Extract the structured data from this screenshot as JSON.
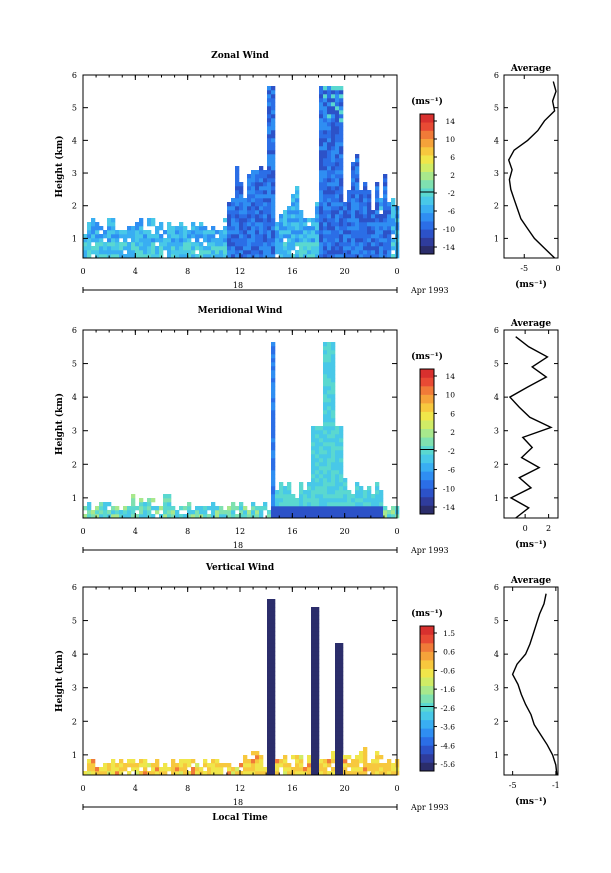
{
  "colors": {
    "colormap": [
      "#2b2d6b",
      "#2f3c9c",
      "#2c52c8",
      "#2b6ee6",
      "#2f8ef2",
      "#39aef2",
      "#48c8e8",
      "#5ad8d0",
      "#7fe1b0",
      "#a8e88c",
      "#d0ec66",
      "#f0e64a",
      "#f7c83e",
      "#f5a23a",
      "#f07a38",
      "#e84a34",
      "#d8302e"
    ],
    "line": "#000000"
  },
  "chart_data": [
    {
      "type": "heatmap",
      "title": "Zonal Wind",
      "ylabel": "Height (km)",
      "xlabel": "",
      "x_ticks": [
        "0",
        "4",
        "8",
        "12",
        "16",
        "20",
        "0"
      ],
      "y_ticks": [
        "1",
        "2",
        "3",
        "4",
        "5",
        "6"
      ],
      "xlim": [
        0,
        24
      ],
      "ylim": [
        0.4,
        6
      ],
      "date_label": "18",
      "date_suffix": "Apr 1993",
      "colorbar": {
        "unit": "(ms⁻¹)",
        "ticks": [
          "14",
          "10",
          "6",
          "2",
          "-2",
          "-6",
          "-10",
          "-14"
        ],
        "range": [
          -16,
          16
        ]
      },
      "profile": {
        "title": "Average",
        "xlabel": "(ms⁻¹)",
        "x_ticks": [
          "-5",
          "0"
        ],
        "x_tick_values": [
          -5,
          0
        ],
        "xlim": [
          -8,
          0
        ],
        "y_ticks": [
          "1",
          "2",
          "3",
          "4",
          "5",
          "6"
        ],
        "heights": [
          0.4,
          0.7,
          1.0,
          1.3,
          1.6,
          1.9,
          2.2,
          2.5,
          2.8,
          3.1,
          3.4,
          3.7,
          4.0,
          4.3,
          4.6,
          4.9,
          5.2,
          5.5,
          5.8
        ],
        "values": [
          -0.5,
          -2.0,
          -3.5,
          -4.5,
          -5.5,
          -6.0,
          -6.5,
          -7.0,
          -7.2,
          -6.8,
          -7.3,
          -6.5,
          -4.5,
          -3.0,
          -2.0,
          -0.5,
          -0.8,
          -0.3,
          -0.7
        ]
      }
    },
    {
      "type": "heatmap",
      "title": "Meridional Wind",
      "ylabel": "Height (km)",
      "xlabel": "",
      "x_ticks": [
        "0",
        "4",
        "8",
        "12",
        "16",
        "20",
        "0"
      ],
      "y_ticks": [
        "1",
        "2",
        "3",
        "4",
        "5",
        "6"
      ],
      "xlim": [
        0,
        24
      ],
      "ylim": [
        0.4,
        6
      ],
      "date_label": "18",
      "date_suffix": "Apr 1993",
      "colorbar": {
        "unit": "(ms⁻¹)",
        "ticks": [
          "14",
          "10",
          "6",
          "2",
          "-2",
          "-6",
          "-10",
          "-14"
        ],
        "range": [
          -16,
          16
        ]
      },
      "profile": {
        "title": "Average",
        "xlabel": "(ms⁻¹)",
        "x_ticks": [
          "0",
          "2"
        ],
        "x_tick_values": [
          0,
          2
        ],
        "xlim": [
          -1.8,
          2.8
        ],
        "y_ticks": [
          "1",
          "2",
          "3",
          "4",
          "5",
          "6"
        ],
        "heights": [
          0.4,
          0.7,
          1.0,
          1.3,
          1.6,
          1.9,
          2.2,
          2.5,
          2.8,
          3.1,
          3.4,
          3.7,
          4.0,
          4.3,
          4.6,
          4.9,
          5.2,
          5.5,
          5.8
        ],
        "values": [
          -0.8,
          0.3,
          -1.2,
          0.5,
          -0.5,
          1.2,
          -0.3,
          0.6,
          -0.2,
          2.2,
          0.4,
          -0.5,
          -1.3,
          0.2,
          1.8,
          0.6,
          1.9,
          0.3,
          -0.8
        ]
      }
    },
    {
      "type": "heatmap",
      "title": "Vertical Wind",
      "ylabel": "Height (km)",
      "xlabel": "Local Time",
      "x_ticks": [
        "0",
        "4",
        "8",
        "12",
        "16",
        "20",
        "0"
      ],
      "y_ticks": [
        "1",
        "2",
        "3",
        "4",
        "5",
        "6"
      ],
      "xlim": [
        0,
        24
      ],
      "ylim": [
        0.4,
        6
      ],
      "date_label": "18",
      "date_suffix": "Apr 1993",
      "colorbar": {
        "unit": "(ms⁻¹)",
        "ticks": [
          "1.5",
          "0.6",
          "-0.6",
          "-1.6",
          "-2.6",
          "-3.6",
          "-4.6",
          "-5.6"
        ],
        "range": [
          -6,
          2
        ]
      },
      "profile": {
        "title": "Average",
        "xlabel": "(ms⁻¹)",
        "x_ticks": [
          "-5",
          "-1"
        ],
        "x_tick_values": [
          -5,
          -1
        ],
        "xlim": [
          -5.8,
          -0.8
        ],
        "y_ticks": [
          "1",
          "2",
          "3",
          "4",
          "5",
          "6"
        ],
        "heights": [
          0.4,
          0.7,
          1.0,
          1.3,
          1.6,
          1.9,
          2.2,
          2.5,
          2.8,
          3.1,
          3.4,
          3.7,
          4.0,
          4.3,
          4.6,
          4.9,
          5.2,
          5.5,
          5.8
        ],
        "values": [
          -0.9,
          -1.0,
          -1.3,
          -1.8,
          -2.4,
          -3.0,
          -3.3,
          -3.8,
          -4.2,
          -4.5,
          -5.0,
          -4.6,
          -3.8,
          -3.4,
          -3.1,
          -2.8,
          -2.5,
          -2.1,
          -1.9
        ]
      }
    }
  ]
}
